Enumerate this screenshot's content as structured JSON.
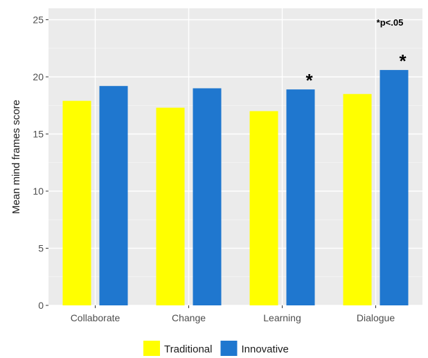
{
  "chart_data": {
    "type": "bar",
    "categories": [
      "Collaborate",
      "Change",
      "Learning",
      "Dialogue"
    ],
    "series": [
      {
        "name": "Traditional",
        "color": "#ffff00",
        "values": [
          17.9,
          17.3,
          17.0,
          18.5
        ]
      },
      {
        "name": "Innovative",
        "color": "#1f77cf",
        "values": [
          19.2,
          19.0,
          18.9,
          20.6
        ]
      }
    ],
    "ylabel": "Mean mind frames score",
    "xlabel": "",
    "ylim": [
      0,
      26
    ],
    "yticks": [
      0,
      5,
      10,
      15,
      20,
      25
    ],
    "grid": true,
    "legend_position": "bottom",
    "significance_note": "*p<.05",
    "significant_markers": [
      {
        "category": "Learning",
        "series": "Innovative",
        "label": "*"
      },
      {
        "category": "Dialogue",
        "series": "Innovative",
        "label": "*"
      }
    ],
    "panel_background": "#ebebeb"
  }
}
